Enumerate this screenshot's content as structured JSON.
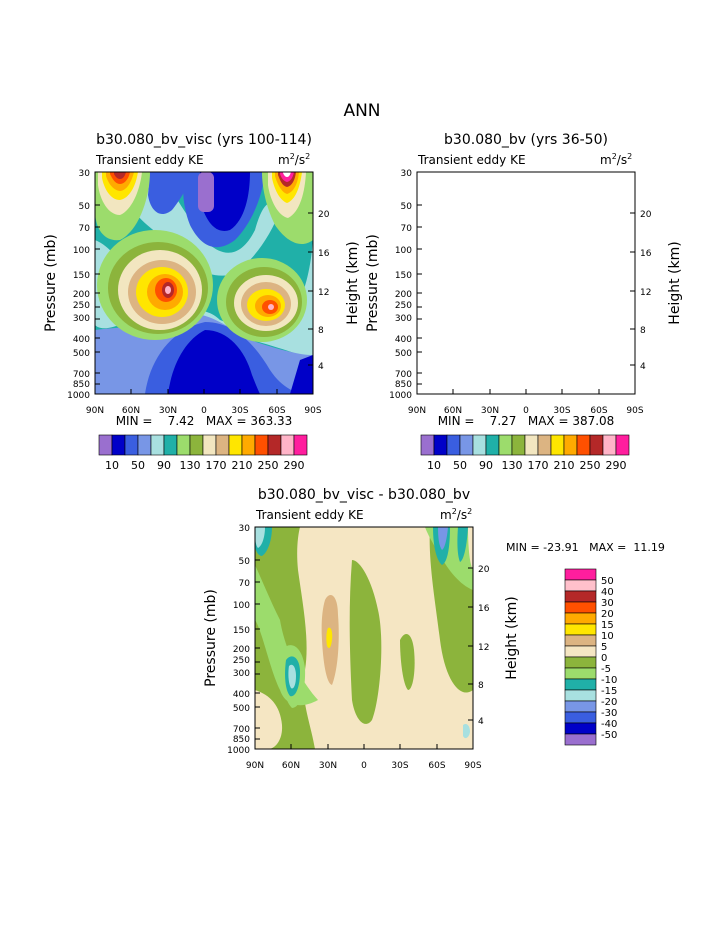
{
  "page": {
    "title": "ANN",
    "variable_label": "Transient eddy KE",
    "units_base": "m",
    "units_exp1": "2",
    "units_mid": "/s",
    "units_exp2": "2"
  },
  "colors": {
    "base_levels": [
      "#9a6fcf",
      "#0000c8",
      "#3a5ee0",
      "#7896e6",
      "#a8e0e0",
      "#20b0a8",
      "#9cdc6c",
      "#8cb43c",
      "#f2e6c0",
      "#dcb482",
      "#ffe600",
      "#ffaa00",
      "#ff5000",
      "#b42828",
      "#ffb4c8",
      "#ff1e9e"
    ],
    "diff_levels": [
      "#ff1e9e",
      "#ffc0cb",
      "#b42828",
      "#ff5000",
      "#ffaa00",
      "#ffe600",
      "#dcb482",
      "#f5e6c3",
      "#8cb43c",
      "#9cdc6c",
      "#20b0a8",
      "#a8e0e0",
      "#7896e6",
      "#3a5ee0",
      "#0000c8",
      "#9a6fcf"
    ]
  },
  "chart_data": [
    {
      "type": "heatmap",
      "title": "b30.080_bv_visc (yrs 100-114)",
      "ylabel": "Pressure (mb)",
      "y2label": "Height (km)",
      "x_ticks": [
        "90N",
        "60N",
        "30N",
        "0",
        "30S",
        "60S",
        "90S"
      ],
      "y_ticks": [
        "30",
        "50",
        "70",
        "100",
        "150",
        "200",
        "250",
        "300",
        "400",
        "500",
        "700",
        "850",
        "1000"
      ],
      "y2_ticks": [
        "20",
        "16",
        "12",
        "8",
        "4"
      ],
      "min_text": "MIN =    7.42   MAX = 363.33",
      "min": 7.42,
      "max": 363.33,
      "colorbar_labels": [
        "10",
        "50",
        "90",
        "130",
        "170",
        "210",
        "250",
        "290"
      ]
    },
    {
      "type": "heatmap",
      "title": "b30.080_bv (yrs 36-50)",
      "ylabel": "Pressure (mb)",
      "y2label": "Height (km)",
      "x_ticks": [
        "90N",
        "60N",
        "30N",
        "0",
        "30S",
        "60S",
        "90S"
      ],
      "y_ticks": [
        "30",
        "50",
        "70",
        "100",
        "150",
        "200",
        "250",
        "300",
        "400",
        "500",
        "700",
        "850",
        "1000"
      ],
      "y2_ticks": [
        "20",
        "16",
        "12",
        "8",
        "4"
      ],
      "min_text": "MIN =    7.27   MAX = 387.08",
      "min": 7.27,
      "max": 387.08,
      "colorbar_labels": [
        "10",
        "50",
        "90",
        "130",
        "170",
        "210",
        "250",
        "290"
      ]
    },
    {
      "type": "heatmap",
      "title": "b30.080_bv_visc - b30.080_bv",
      "ylabel": "Pressure (mb)",
      "y2label": "Height (km)",
      "x_ticks": [
        "90N",
        "60N",
        "30N",
        "0",
        "30S",
        "60S",
        "90S"
      ],
      "y_ticks": [
        "30",
        "50",
        "70",
        "100",
        "150",
        "200",
        "250",
        "300",
        "400",
        "500",
        "700",
        "850",
        "1000"
      ],
      "y2_ticks": [
        "20",
        "16",
        "12",
        "8",
        "4"
      ],
      "min_text": "MIN = -23.91   MAX =  11.19",
      "min": -23.91,
      "max": 11.19,
      "colorbar_labels": [
        "50",
        "40",
        "30",
        "20",
        "15",
        "10",
        "5",
        "0",
        "-5",
        "-10",
        "-15",
        "-20",
        "-30",
        "-40",
        "-50"
      ]
    }
  ]
}
